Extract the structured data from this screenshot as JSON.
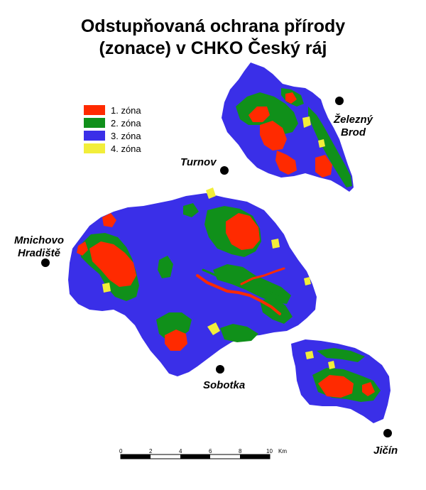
{
  "title_line1": "Odstupňovaná ochrana přírody",
  "title_line2": "(zonace) v CHKO Český ráj",
  "legend": [
    {
      "label": "1. zóna",
      "color": "#ff2a00"
    },
    {
      "label": "2. zóna",
      "color": "#10901a"
    },
    {
      "label": "3. zóna",
      "color": "#3a2fe8"
    },
    {
      "label": "4. zóna",
      "color": "#f2ee3a"
    }
  ],
  "towns": {
    "zelezny_brod_line1": "Železný",
    "zelezny_brod_line2": "Brod",
    "turnov": "Turnov",
    "mnichovo_line1": "Mnichovo",
    "mnichovo_line2": "Hradiště",
    "sobotka": "Sobotka",
    "jicin": "Jičín"
  },
  "scale_bar": {
    "ticks": [
      "0",
      "2",
      "4",
      "6",
      "8",
      "10"
    ],
    "unit": "Km"
  }
}
